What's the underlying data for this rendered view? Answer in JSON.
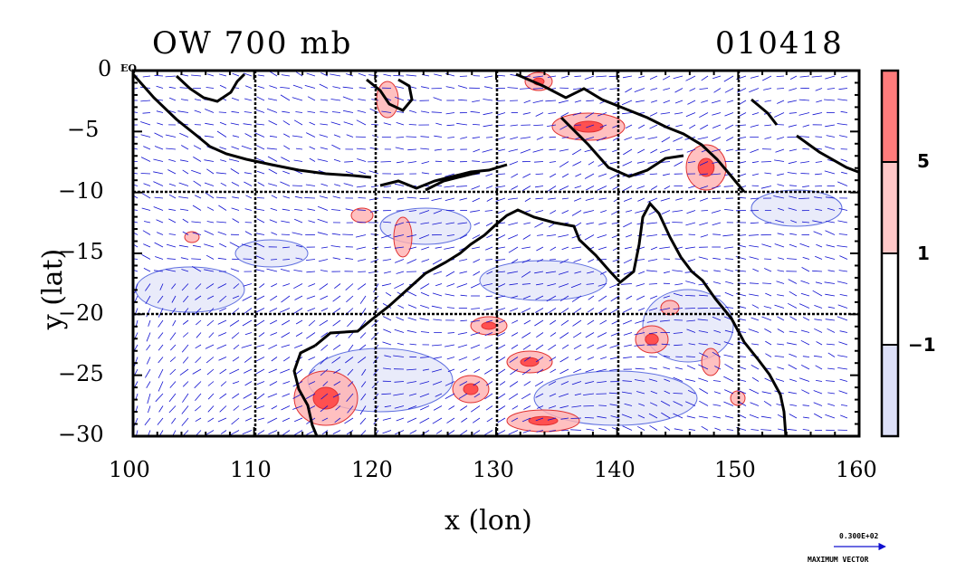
{
  "plot": {
    "title_left": "OW 700 mb",
    "title_right": "010418",
    "xlabel": "x (lon)",
    "ylabel": "y (lat)",
    "eq_label": "EQ",
    "xticks": [
      "100",
      "110",
      "120",
      "130",
      "140",
      "150",
      "160"
    ],
    "yticks": [
      "0",
      "−5",
      "−10",
      "−15",
      "−20",
      "−25",
      "−30"
    ]
  },
  "colorbar": {
    "ticks": [
      "5",
      "1",
      "−1"
    ],
    "colors": [
      "#ff7b7b",
      "#ffc8c8",
      "#ffffff",
      "#dde0f8"
    ]
  },
  "vector_key": {
    "value": "0.300E+02",
    "label": "MAXIMUM VECTOR"
  },
  "colors": {
    "vectors": "#1010d0",
    "positive_contour": "#e03030",
    "negative_contour": "#6070e0",
    "coast": "#000000"
  }
}
